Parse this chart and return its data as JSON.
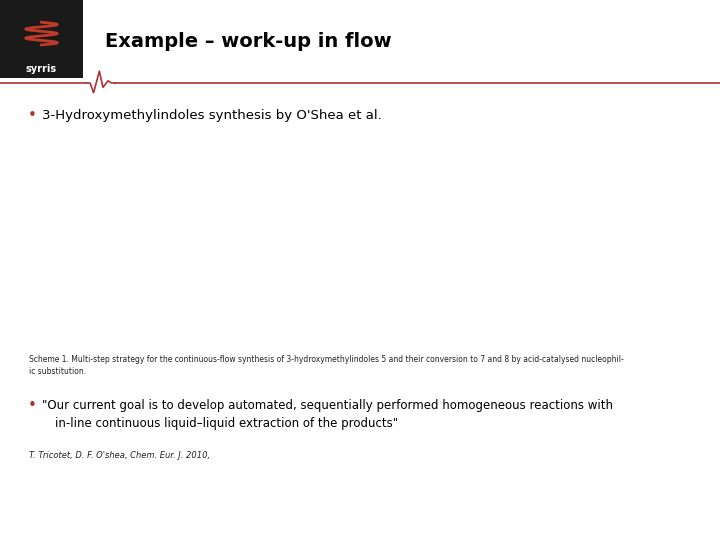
{
  "title": "Example – work-up in flow",
  "title_fontsize": 14,
  "background_color": "#ffffff",
  "header_box_color": "#1a1a1a",
  "divider_color": "#b03030",
  "bullet_color": "#b03030",
  "bullet1_text": "3-Hydroxymethylindoles synthesis by O'Shea et al.",
  "bullet1_fontsize": 9.5,
  "scheme_caption_line1": "Scheme 1. Multi-step strategy for the continuous-flow synthesis of 3-hydroxymethylindoles 5 and their conversion to 7 and 8 by acid-catalysed nucleophil-",
  "scheme_caption_line2": "ic substitution.",
  "scheme_caption_fontsize": 5.5,
  "bullet2_text_line1": "\"Our current goal is to develop automated, sequentially performed homogeneous reactions with",
  "bullet2_text_line2": "in-line continuous liquid–liquid extraction of the products\"",
  "bullet2_fontsize": 8.5,
  "reference_text": "T. Tricotet, D. F. O'shea, Chem. Eur. J. 2010,",
  "reference_fontsize": 6,
  "syrris_text": "syrris",
  "syrris_color": "#ffffff",
  "syrris_fontsize": 7
}
